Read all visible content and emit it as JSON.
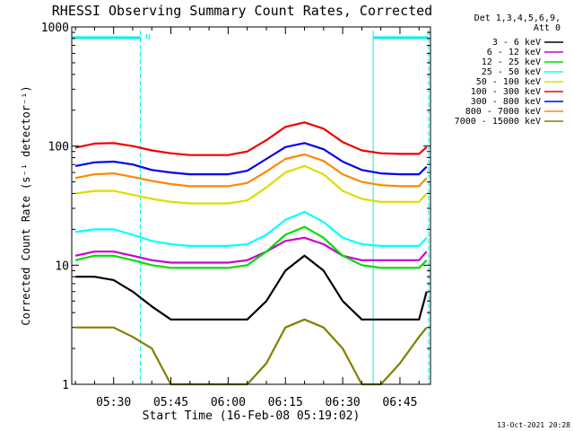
{
  "chart_data": {
    "type": "line",
    "title": "RHESSI Observing Summary Count Rates, Corrected",
    "xlabel": "Start Time (16-Feb-08 05:19:02)",
    "ylabel": "Corrected Count Rate (s⁻¹ detector⁻¹)",
    "yscale": "log",
    "ylim": [
      1,
      1000
    ],
    "xlim": [
      "05:19:02",
      "06:53:00"
    ],
    "xticks": [
      "05:30",
      "05:45",
      "06:00",
      "06:15",
      "06:30",
      "06:45"
    ],
    "yticks": [
      "1",
      "10",
      "100",
      "1000"
    ],
    "grid": false,
    "legend_position": "right",
    "legend_header": [
      "Det 1,3,4,5,6,9,",
      "Att 0"
    ],
    "time_points": [
      "05:20",
      "05:25",
      "05:30",
      "05:35",
      "05:40",
      "05:45",
      "05:50",
      "05:55",
      "06:00",
      "06:05",
      "06:10",
      "06:15",
      "06:20",
      "06:25",
      "06:30",
      "06:35",
      "06:40",
      "06:45",
      "06:50",
      "06:52"
    ],
    "series": [
      {
        "name": "3 - 6 keV",
        "color": "#000000",
        "values": [
          8,
          8,
          7.5,
          6,
          4.5,
          3.5,
          3.5,
          3.5,
          3.5,
          3.5,
          5,
          9,
          12,
          9,
          5,
          3.5,
          3.5,
          3.5,
          3.5,
          6
        ]
      },
      {
        "name": "6 - 12 keV",
        "color": "#cc00cc",
        "values": [
          12,
          13,
          13,
          12,
          11,
          10.5,
          10.5,
          10.5,
          10.5,
          11,
          13,
          16,
          17,
          15,
          12,
          11,
          11,
          11,
          11,
          13
        ]
      },
      {
        "name": "12 - 25 keV",
        "color": "#00dd00",
        "values": [
          11,
          12,
          12,
          11,
          10,
          9.5,
          9.5,
          9.5,
          9.5,
          10,
          13,
          18,
          21,
          17,
          12,
          10,
          9.5,
          9.5,
          9.5,
          11
        ]
      },
      {
        "name": "25 - 50 keV",
        "color": "#00ffff",
        "values": [
          19,
          20,
          20,
          18,
          16,
          15,
          14.5,
          14.5,
          14.5,
          15,
          18,
          24,
          28,
          23,
          17,
          15,
          14.5,
          14.5,
          14.5,
          17
        ]
      },
      {
        "name": "50 - 100 keV",
        "color": "#dddd00",
        "values": [
          40,
          42,
          42,
          39,
          36,
          34,
          33,
          33,
          33,
          35,
          45,
          60,
          68,
          58,
          42,
          36,
          34,
          34,
          34,
          40
        ]
      },
      {
        "name": "100 - 300 keV",
        "color": "#ee0000",
        "values": [
          97,
          105,
          106,
          100,
          92,
          87,
          84,
          84,
          84,
          90,
          112,
          145,
          158,
          140,
          108,
          92,
          87,
          86,
          86,
          98
        ]
      },
      {
        "name": "300 - 800 keV",
        "color": "#0000ee",
        "values": [
          68,
          73,
          74,
          70,
          63,
          60,
          58,
          58,
          58,
          62,
          78,
          98,
          106,
          94,
          74,
          63,
          59,
          58,
          58,
          67
        ]
      },
      {
        "name": "800 - 7000 keV",
        "color": "#ff8800",
        "values": [
          54,
          58,
          59,
          55,
          51,
          48,
          46,
          46,
          46,
          49,
          61,
          78,
          85,
          75,
          58,
          50,
          47,
          46,
          46,
          54
        ]
      },
      {
        "name": "7000 - 15000 keV",
        "color": "#808000",
        "values": [
          3,
          3,
          3,
          2.5,
          2,
          1,
          1,
          1,
          1,
          1,
          1.5,
          3,
          3.5,
          3,
          2,
          1,
          1,
          1.5,
          2.5,
          3
        ]
      }
    ],
    "attenuator_bands": [
      {
        "start": "05:19:02",
        "end": "05:37:00",
        "label": "N"
      },
      {
        "start": "06:38:00",
        "end": "06:52:30",
        "label": ""
      }
    ],
    "band_color": "#00eeee"
  },
  "footer": {
    "timestamp": "13-Oct-2021 20:28"
  }
}
